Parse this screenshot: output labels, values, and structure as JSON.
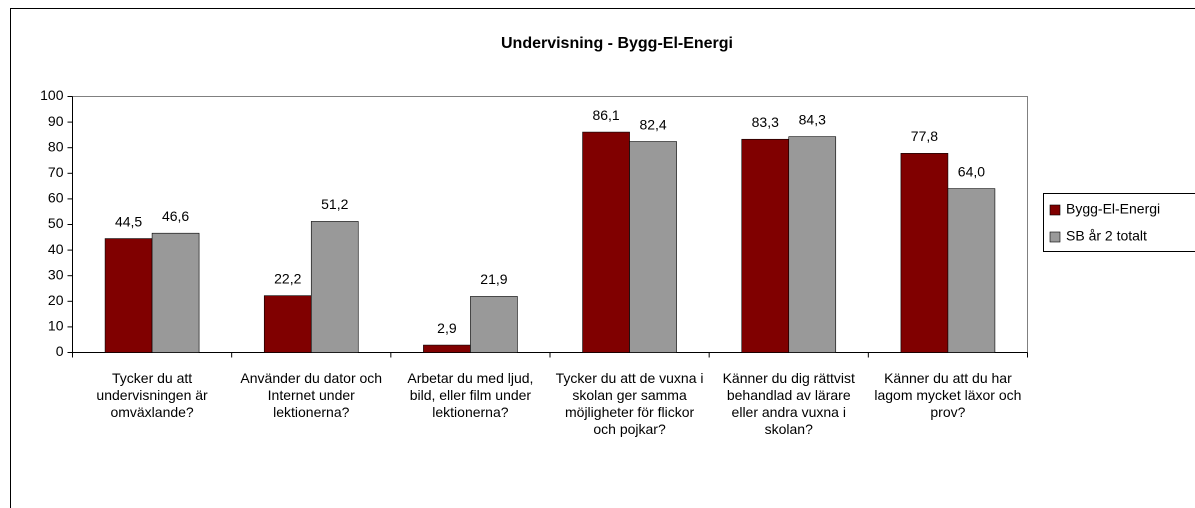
{
  "chart_data": {
    "type": "bar",
    "title": "Undervisning - Bygg-El-Energi",
    "categories": [
      "Tycker du att undervisningen är omväxlande?",
      "Använder du dator och Internet under lektionerna?",
      "Arbetar du med ljud, bild, eller film under lektionerna?",
      "Tycker du att de vuxna i skolan ger samma möjligheter för flickor och pojkar?",
      "Känner du dig rättvist behandlad av lärare eller andra vuxna i skolan?",
      "Känner du att du har lagom mycket läxor och prov?"
    ],
    "series": [
      {
        "name": "Bygg-El-Energi",
        "color": "#800000",
        "values": [
          44.5,
          22.2,
          2.9,
          86.1,
          83.3,
          77.8
        ],
        "value_labels": [
          "44,5",
          "22,2",
          "2,9",
          "86,1",
          "83,3",
          "77,8"
        ]
      },
      {
        "name": "SB år 2 totalt",
        "color": "#999999",
        "values": [
          46.6,
          51.2,
          21.9,
          82.4,
          84.3,
          64
        ],
        "value_labels": [
          "46,6",
          "51,2",
          "21,9",
          "82,4",
          "84,3",
          "64,0"
        ]
      }
    ],
    "ylim": [
      0,
      100
    ],
    "yticks": [
      0,
      10,
      20,
      30,
      40,
      50,
      60,
      70,
      80,
      90,
      100
    ],
    "grid": false,
    "legend": "right"
  }
}
